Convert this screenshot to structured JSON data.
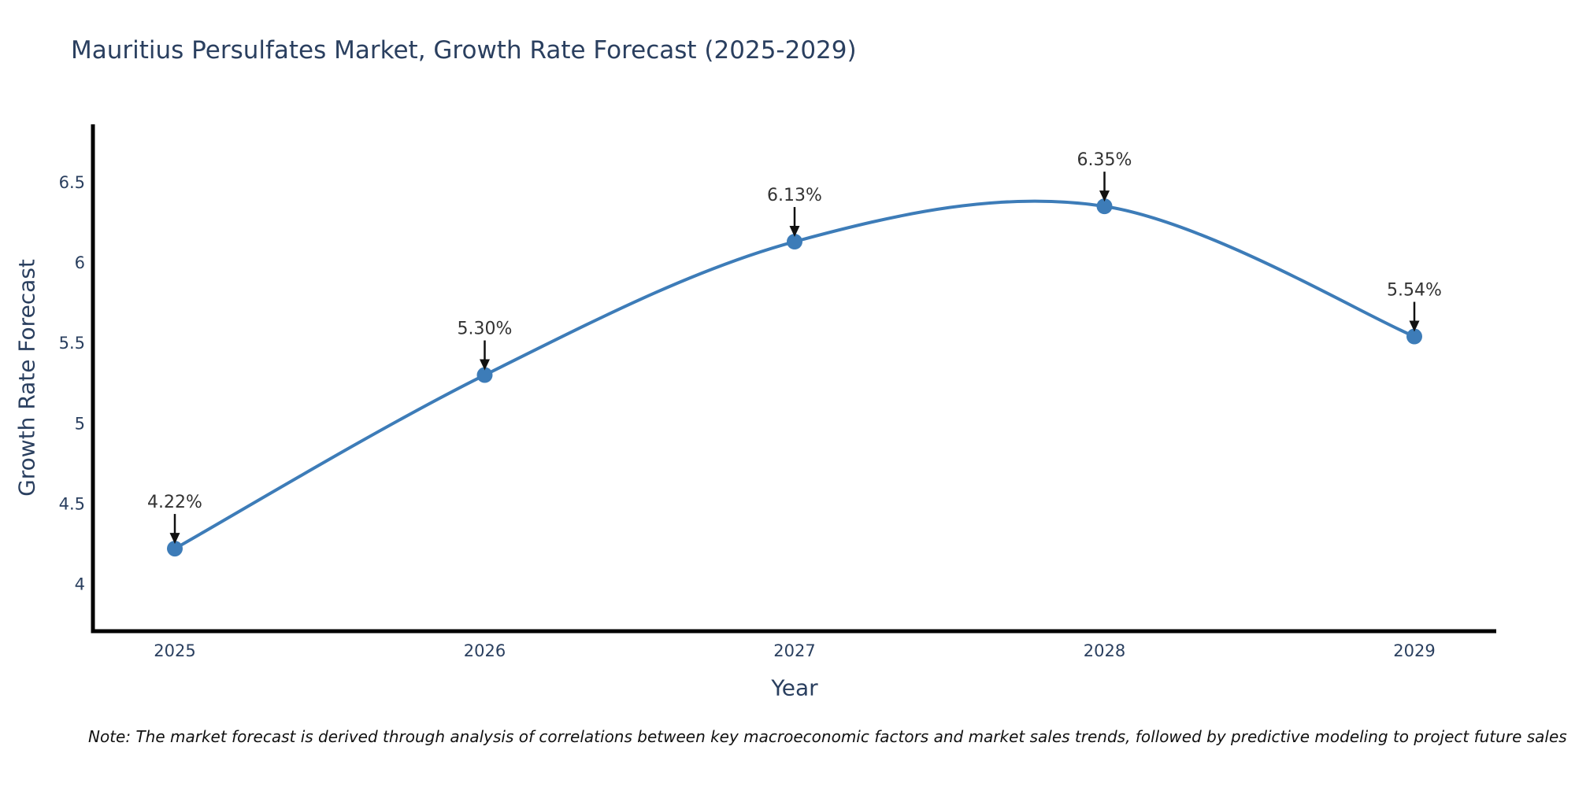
{
  "chart_data": {
    "type": "line",
    "title": "Mauritius Persulfates Market, Growth Rate Forecast (2025-2029)",
    "xlabel": "Year",
    "ylabel": "Growth Rate Forecast",
    "x": [
      2025,
      2026,
      2027,
      2028,
      2029
    ],
    "series": [
      {
        "name": "Growth Rate Forecast (%)",
        "values": [
          4.22,
          5.3,
          6.13,
          6.35,
          5.54
        ]
      }
    ],
    "point_labels": [
      "4.22%",
      "5.30%",
      "6.13%",
      "6.35%",
      "5.54%"
    ],
    "x_tick_labels": [
      "2025",
      "2026",
      "2027",
      "2028",
      "2029"
    ],
    "y_tick_values": [
      4,
      4.5,
      5,
      5.5,
      6,
      6.5
    ],
    "y_tick_labels": [
      "4",
      "4.5",
      "5",
      "5.5",
      "6",
      "6.5"
    ],
    "ylim": [
      3.71,
      6.86
    ],
    "grid": false,
    "legend": "none",
    "line_shape": "smooth-spline",
    "annotation_style": "down-arrow-to-point",
    "colors": {
      "line": "#3d7cb8",
      "marker": "#3d7cb8",
      "axis": "#000000",
      "tick_text": "#2a3f5f",
      "title_text": "#2a3f5f",
      "point_label_text": "#333333",
      "arrow": "#111111",
      "background": "#ffffff"
    }
  },
  "note": "Note: The market forecast is derived through analysis of correlations between key macroeconomic factors and market sales trends, followed by predictive modeling to project future sales"
}
